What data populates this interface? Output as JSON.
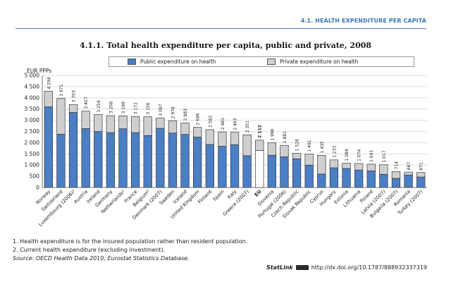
{
  "header": {
    "section_title": "4.1. HEALTH EXPENDITURE PER CAPITA"
  },
  "figure_title": "4.1.1.  Total health expenditure per capita, public and private, 2008",
  "legend": {
    "public": "Public expenditure on health",
    "private": "Private expenditure on health"
  },
  "colors": {
    "public": "#4a7ec5",
    "private": "#cfcfcf",
    "eu_public": "#ffffff"
  },
  "notes": {
    "note1": "1.  Health expenditure is for the insured population rather than resident population.",
    "note2": "2.  Current health expenditure (excluding investment).",
    "source": "Source:  OECD Health Data 2010; Eurostat Statistics Database."
  },
  "statlink": {
    "label": "StatLink",
    "url": "http://dx.doi.org/10.1787/888932337319"
  },
  "chart_data": {
    "type": "bar",
    "stacked": true,
    "ylabel": "EUR PPPs",
    "ylim": [
      0,
      5000
    ],
    "yticks": [
      0,
      500,
      1000,
      1500,
      2000,
      2500,
      3000,
      3500,
      4000,
      4500,
      5000
    ],
    "ytick_labels": [
      "0",
      "500",
      "1 000",
      "1 500",
      "2 000",
      "2 500",
      "3 000",
      "3 500",
      "4 000",
      "4 500",
      "5 000"
    ],
    "categories": [
      "Norway",
      "Switzerland",
      "Luxembourg (2006)¹",
      "Austria",
      "Ireland",
      "Germany",
      "Netherlands²",
      "France",
      "Belgium²",
      "Denmark (2007)",
      "Sweden",
      "Iceland",
      "United Kingdom",
      "Finland",
      "Spain",
      "Italy",
      "Greece (2007)",
      "EU",
      "Slovenia",
      "Portugal (2006)",
      "Czech Republic",
      "Slovak Republic",
      "Cyprus",
      "Hungary",
      "Estonia",
      "Lithuania",
      "Poland",
      "Latvia (2007)",
      "Bulgaria (2007)",
      "Romania",
      "Turkey (2007)"
    ],
    "total_labels": [
      "4 294",
      "3 971",
      "3 703",
      "3 407",
      "3 254",
      "3 208",
      "3 199",
      "3 172",
      "3 156",
      "3 097",
      "2 978",
      "2 883",
      "2 686",
      "2 582",
      "2 481",
      "2 463",
      "2 351",
      "2 112",
      "1 996",
      "1 881",
      "1 528",
      "1 491",
      "1 435",
      "1 233",
      "1 084",
      "1 074",
      "1 041",
      "1 017",
      "714",
      "687",
      "671"
    ],
    "emphasis_category": "EU",
    "series": [
      {
        "name": "Public expenditure on health",
        "values": [
          3600,
          2380,
          3350,
          2630,
          2500,
          2450,
          2620,
          2450,
          2320,
          2640,
          2430,
          2370,
          2250,
          1920,
          1840,
          1910,
          1420,
          1650,
          1440,
          1370,
          1280,
          1000,
          600,
          880,
          850,
          780,
          740,
          590,
          410,
          560,
          470
        ]
      },
      {
        "name": "Private expenditure on health",
        "values": [
          694,
          1591,
          353,
          777,
          754,
          758,
          579,
          722,
          836,
          457,
          548,
          513,
          436,
          662,
          641,
          553,
          931,
          462,
          556,
          511,
          248,
          491,
          835,
          353,
          234,
          294,
          301,
          427,
          304,
          127,
          201
        ]
      }
    ],
    "grid": true
  }
}
